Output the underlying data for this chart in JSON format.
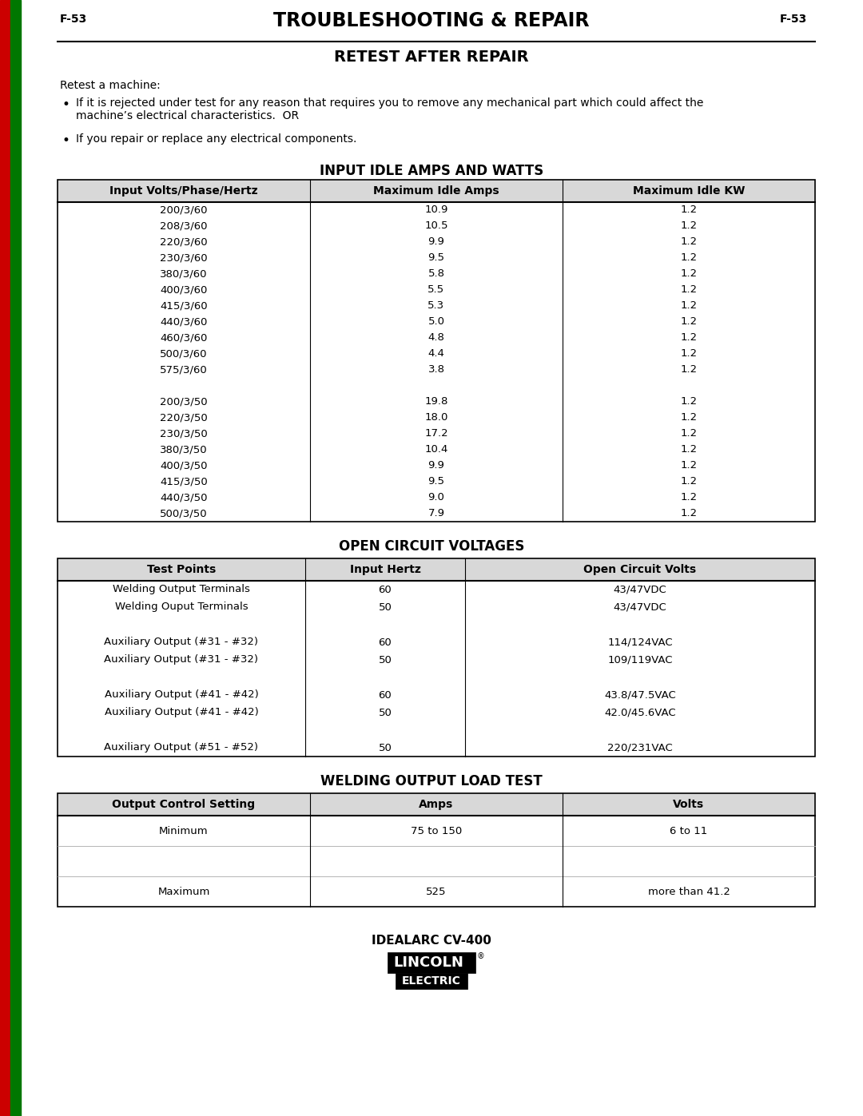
{
  "page_label_left": "F-53",
  "page_label_right": "F-53",
  "main_title": "TROUBLESHOOTING & REPAIR",
  "section_title": "RETEST AFTER REPAIR",
  "intro_text": "Retest a machine:",
  "bullet1_line1": "If it is rejected under test for any reason that requires you to remove any mechanical part which could affect the",
  "bullet1_line2": "machine’s electrical characteristics.  OR",
  "bullet2": "If you repair or replace any electrical components.",
  "table1_title": "INPUT IDLE AMPS AND WATTS",
  "table1_headers": [
    "Input Volts/Phase/Hertz",
    "Maximum Idle Amps",
    "Maximum Idle KW"
  ],
  "table1_rows": [
    [
      "200/3/60",
      "10.9",
      "1.2"
    ],
    [
      "208/3/60",
      "10.5",
      "1.2"
    ],
    [
      "220/3/60",
      "9.9",
      "1.2"
    ],
    [
      "230/3/60",
      "9.5",
      "1.2"
    ],
    [
      "380/3/60",
      "5.8",
      "1.2"
    ],
    [
      "400/3/60",
      "5.5",
      "1.2"
    ],
    [
      "415/3/60",
      "5.3",
      "1.2"
    ],
    [
      "440/3/60",
      "5.0",
      "1.2"
    ],
    [
      "460/3/60",
      "4.8",
      "1.2"
    ],
    [
      "500/3/60",
      "4.4",
      "1.2"
    ],
    [
      "575/3/60",
      "3.8",
      "1.2"
    ],
    [
      "",
      "",
      ""
    ],
    [
      "200/3/50",
      "19.8",
      "1.2"
    ],
    [
      "220/3/50",
      "18.0",
      "1.2"
    ],
    [
      "230/3/50",
      "17.2",
      "1.2"
    ],
    [
      "380/3/50",
      "10.4",
      "1.2"
    ],
    [
      "400/3/50",
      "9.9",
      "1.2"
    ],
    [
      "415/3/50",
      "9.5",
      "1.2"
    ],
    [
      "440/3/50",
      "9.0",
      "1.2"
    ],
    [
      "500/3/50",
      "7.9",
      "1.2"
    ]
  ],
  "table2_title": "OPEN CIRCUIT VOLTAGES",
  "table2_headers": [
    "Test Points",
    "Input Hertz",
    "Open Circuit Volts"
  ],
  "table2_rows": [
    [
      "Welding Output Terminals",
      "60",
      "43/47VDC"
    ],
    [
      "Welding Ouput Terminals",
      "50",
      "43/47VDC"
    ],
    [
      "",
      "",
      ""
    ],
    [
      "Auxiliary Output (#31 - #32)",
      "60",
      "114/124VAC"
    ],
    [
      "Auxiliary Output (#31 - #32)",
      "50",
      "109/119VAC"
    ],
    [
      "",
      "",
      ""
    ],
    [
      "Auxiliary Output (#41 - #42)",
      "60",
      "43.8/47.5VAC"
    ],
    [
      "Auxiliary Output (#41 - #42)",
      "50",
      "42.0/45.6VAC"
    ],
    [
      "",
      "",
      ""
    ],
    [
      "Auxiliary Output (#51 - #52)",
      "50",
      "220/231VAC"
    ]
  ],
  "table3_title": "WELDING OUTPUT LOAD TEST",
  "table3_headers": [
    "Output Control Setting",
    "Amps",
    "Volts"
  ],
  "table3_rows": [
    [
      "Minimum",
      "75 to 150",
      "6 to 11"
    ],
    [
      "",
      "",
      ""
    ],
    [
      "Maximum",
      "525",
      "more than 41.2"
    ]
  ],
  "footer_model": "IDEALARC CV-400",
  "bg_color": "#ffffff",
  "sidebar_red": "#cc0000",
  "sidebar_green": "#007700"
}
